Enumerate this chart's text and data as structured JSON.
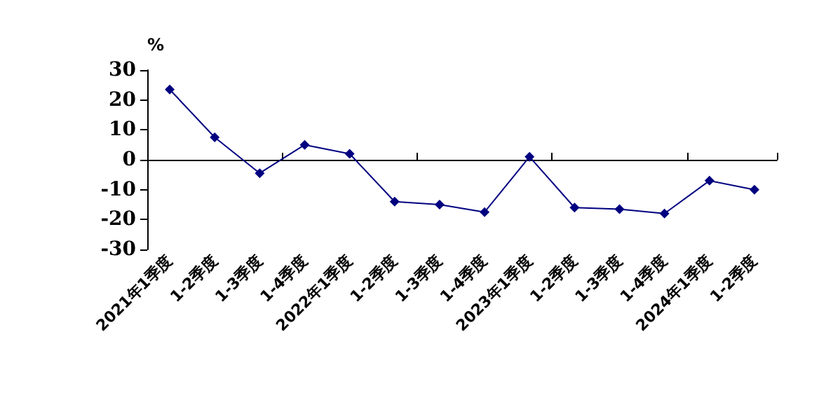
{
  "chart_data": {
    "type": "line",
    "ylabel": "%",
    "categories": [
      "2021年1季度",
      "1-2季度",
      "1-3季度",
      "1-4季度",
      "2022年1季度",
      "1-2季度",
      "1-3季度",
      "1-4季度",
      "2023年1季度",
      "1-2季度",
      "1-3季度",
      "1-4季度",
      "2024年1季度",
      "1-2季度"
    ],
    "series": [
      {
        "color": "#000080",
        "values": [
          23.5,
          7.5,
          -4.5,
          5,
          2,
          -14,
          -15,
          -17.5,
          1,
          -16,
          -16.5,
          -18,
          -7,
          -10
        ]
      }
    ],
    "ylim": [
      -30,
      30
    ],
    "yticks": [
      -30,
      -20,
      -10,
      0,
      10,
      20,
      30
    ],
    "marker": "diamond",
    "line_style": "solid"
  }
}
